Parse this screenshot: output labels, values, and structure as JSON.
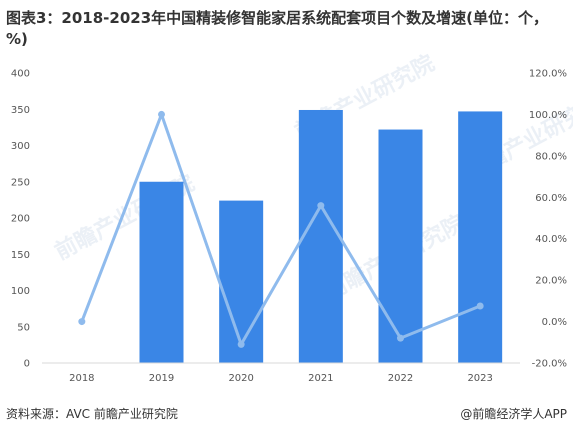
{
  "title": "图表3：2018-2023年中国精装修智能家居系统配套项目个数及增速(单位：个，%)",
  "source": "资料来源：AVC 前瞻产业研究院",
  "credit": "@前瞻经济学人APP",
  "watermark": "前瞻产业研究院",
  "colors": {
    "bar": "#3a86e6",
    "line": "#8fbbed",
    "axis": "#d9d9d9",
    "text": "#555555"
  },
  "chart_data": {
    "type": "bar",
    "categories": [
      "2018",
      "2019",
      "2020",
      "2021",
      "2022",
      "2023"
    ],
    "series": [
      {
        "type": "bar",
        "axis": "left",
        "values": [
          0,
          250,
          224,
          349,
          322,
          347
        ]
      },
      {
        "type": "line",
        "axis": "right",
        "values": [
          0.0,
          100.0,
          -11.0,
          56.0,
          -8.0,
          7.5
        ]
      }
    ],
    "y_left": {
      "range": [
        0,
        400
      ],
      "ticks": [
        "0",
        "50",
        "100",
        "150",
        "200",
        "250",
        "300",
        "350",
        "400"
      ]
    },
    "y_right": {
      "range": [
        -20,
        120
      ],
      "ticks": [
        "-20.0%",
        "0.0%",
        "20.0%",
        "40.0%",
        "60.0%",
        "80.0%",
        "100.0%",
        "120.0%"
      ]
    },
    "grid": false,
    "legend": "none"
  }
}
